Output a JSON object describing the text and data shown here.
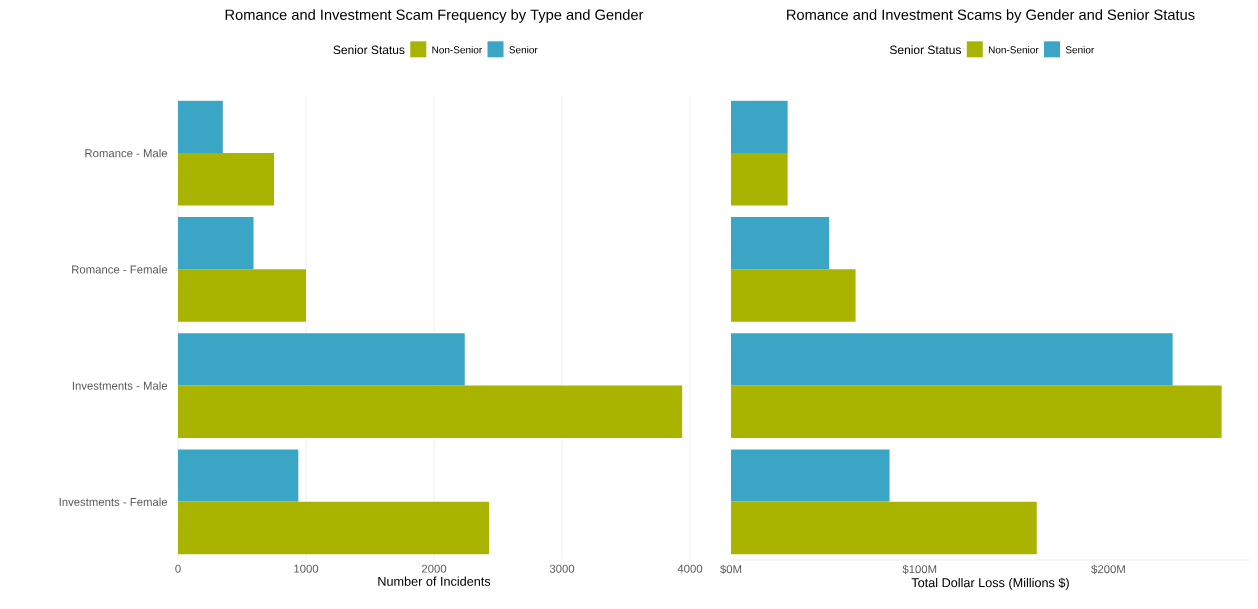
{
  "chart_data": [
    {
      "type": "bar",
      "orientation": "horizontal",
      "title": "Romance and Investment Scam Frequency by Type and Gender",
      "xlabel": "Number of Incidents",
      "legend_title": "Senior Status",
      "legend": "top",
      "categories": [
        "Romance - Male",
        "Romance - Female",
        "Investments - Male",
        "Investments - Female"
      ],
      "series": [
        {
          "name": "Non-Senior",
          "color": "#a8b400",
          "values": [
            750,
            1000,
            3940,
            2430
          ]
        },
        {
          "name": "Senior",
          "color": "#3aa5c4",
          "values": [
            350,
            590,
            2240,
            940
          ]
        }
      ],
      "xlim": [
        0,
        4000
      ],
      "xticks": [
        0,
        1000,
        2000,
        3000,
        4000
      ],
      "grid": "x"
    },
    {
      "type": "bar",
      "orientation": "horizontal",
      "title": "Romance and Investment Scams by Gender and Senior Status",
      "xlabel": "Total Dollar Loss (Millions $)",
      "legend_title": "Senior Status",
      "legend": "top",
      "tick_labels": "x",
      "categories": [
        null,
        null,
        null,
        null
      ],
      "series": [
        {
          "name": "Non-Senior",
          "color": "#a8b400",
          "values": [
            30,
            66,
            260,
            162
          ]
        },
        {
          "name": "Senior",
          "color": "#3aa5c4",
          "values": [
            30,
            52,
            234,
            84
          ]
        }
      ],
      "xlim": [
        0,
        275
      ],
      "xticks": [
        {
          "value": 0,
          "label": "$0M"
        },
        {
          "value": 100,
          "label": "$100M"
        },
        {
          "value": 200,
          "label": "$200M"
        }
      ]
    }
  ]
}
